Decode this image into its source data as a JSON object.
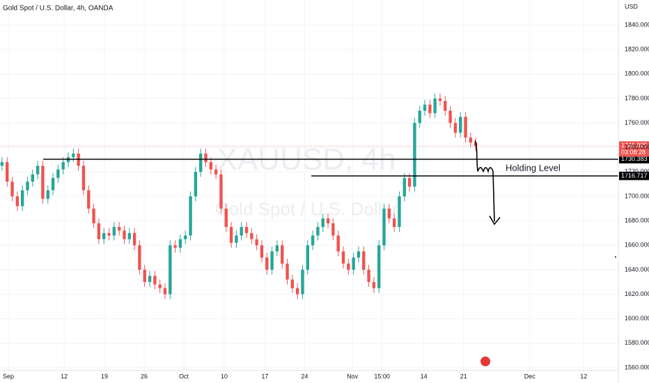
{
  "chart_data": {
    "type": "candlestick",
    "title": "Gold Spot / U.S. Dollar, 4h, OANDA",
    "watermark": "XAUUSD, 4h",
    "watermark_subtitle": "Gold Spot / U.S. Dollar",
    "currency": "USD",
    "annotation": "Holding Level",
    "up_color": "#26a69a",
    "down_color": "#ef5350",
    "x": [
      0,
      1,
      2,
      3,
      4,
      5,
      6,
      7,
      8,
      9,
      10,
      11,
      12,
      13,
      14,
      15,
      16,
      17,
      18,
      19,
      20,
      21,
      22,
      23,
      24,
      25,
      26,
      27,
      28,
      29,
      30,
      31,
      32,
      33,
      34,
      35,
      36,
      37,
      38,
      39,
      40,
      41,
      42,
      43,
      44,
      45,
      46,
      47,
      48,
      49,
      50,
      51,
      52,
      53,
      54,
      55,
      56,
      57,
      58,
      59,
      60,
      61,
      62,
      63,
      64,
      65,
      66,
      67,
      68,
      69,
      70,
      71,
      72,
      73,
      74,
      75,
      76,
      77,
      78,
      79,
      80,
      81,
      82,
      83,
      84,
      85,
      86,
      87,
      88,
      89,
      90,
      91,
      92,
      93
    ],
    "open": [
      1725,
      1728,
      1712,
      1700,
      1692,
      1705,
      1712,
      1718,
      1725,
      1698,
      1705,
      1715,
      1722,
      1728,
      1732,
      1735,
      1725,
      1705,
      1690,
      1678,
      1665,
      1670,
      1668,
      1675,
      1672,
      1665,
      1670,
      1660,
      1640,
      1630,
      1635,
      1628,
      1625,
      1620,
      1660,
      1658,
      1665,
      1668,
      1700,
      1720,
      1735,
      1728,
      1722,
      1718,
      1690,
      1675,
      1662,
      1668,
      1675,
      1670,
      1665,
      1660,
      1650,
      1640,
      1655,
      1660,
      1645,
      1632,
      1625,
      1620,
      1640,
      1660,
      1668,
      1675,
      1682,
      1678,
      1668,
      1655,
      1645,
      1640,
      1650,
      1655,
      1640,
      1630,
      1625,
      1660,
      1690,
      1682,
      1675,
      1700,
      1715,
      1708,
      1760,
      1770,
      1775,
      1768,
      1780,
      1778,
      1770,
      1760,
      1752,
      1765,
      1748,
      1744
    ],
    "high": [
      1732,
      1732,
      1716,
      1704,
      1709,
      1716,
      1722,
      1729,
      1729,
      1709,
      1719,
      1726,
      1732,
      1736,
      1739,
      1739,
      1729,
      1709,
      1694,
      1682,
      1674,
      1674,
      1679,
      1679,
      1676,
      1674,
      1674,
      1664,
      1644,
      1639,
      1639,
      1632,
      1629,
      1664,
      1664,
      1669,
      1672,
      1704,
      1724,
      1739,
      1739,
      1732,
      1726,
      1722,
      1694,
      1679,
      1672,
      1679,
      1679,
      1674,
      1669,
      1664,
      1654,
      1659,
      1664,
      1664,
      1649,
      1636,
      1629,
      1644,
      1664,
      1672,
      1679,
      1686,
      1686,
      1682,
      1672,
      1659,
      1649,
      1654,
      1659,
      1659,
      1644,
      1634,
      1664,
      1694,
      1694,
      1686,
      1704,
      1719,
      1719,
      1764,
      1774,
      1779,
      1779,
      1784,
      1784,
      1782,
      1774,
      1764,
      1769,
      1769,
      1752,
      1748
    ],
    "low": [
      1721,
      1708,
      1696,
      1688,
      1688,
      1701,
      1708,
      1714,
      1694,
      1694,
      1701,
      1711,
      1718,
      1724,
      1728,
      1721,
      1701,
      1686,
      1674,
      1661,
      1661,
      1664,
      1664,
      1668,
      1661,
      1661,
      1656,
      1636,
      1626,
      1626,
      1624,
      1621,
      1616,
      1616,
      1654,
      1654,
      1661,
      1664,
      1696,
      1716,
      1724,
      1718,
      1714,
      1686,
      1671,
      1658,
      1658,
      1664,
      1666,
      1661,
      1656,
      1646,
      1636,
      1636,
      1651,
      1641,
      1628,
      1621,
      1616,
      1616,
      1636,
      1656,
      1664,
      1671,
      1674,
      1664,
      1651,
      1641,
      1636,
      1636,
      1646,
      1636,
      1626,
      1621,
      1621,
      1656,
      1678,
      1671,
      1671,
      1696,
      1704,
      1704,
      1756,
      1766,
      1764,
      1764,
      1774,
      1766,
      1756,
      1748,
      1748,
      1744,
      1740,
      1737
    ],
    "close": [
      1728,
      1712,
      1700,
      1692,
      1705,
      1712,
      1718,
      1725,
      1698,
      1705,
      1715,
      1722,
      1728,
      1732,
      1735,
      1725,
      1705,
      1690,
      1678,
      1665,
      1670,
      1668,
      1675,
      1672,
      1665,
      1670,
      1660,
      1640,
      1630,
      1635,
      1628,
      1625,
      1620,
      1660,
      1658,
      1665,
      1668,
      1700,
      1720,
      1735,
      1728,
      1722,
      1718,
      1690,
      1675,
      1662,
      1668,
      1675,
      1670,
      1665,
      1660,
      1650,
      1640,
      1655,
      1660,
      1645,
      1632,
      1625,
      1620,
      1640,
      1660,
      1668,
      1675,
      1682,
      1678,
      1668,
      1655,
      1645,
      1640,
      1650,
      1655,
      1640,
      1630,
      1625,
      1660,
      1690,
      1682,
      1675,
      1700,
      1715,
      1708,
      1760,
      1770,
      1775,
      1768,
      1780,
      1778,
      1770,
      1760,
      1752,
      1765,
      1748,
      1744,
      1741
    ],
    "xlim": [
      -0.4,
      121
    ],
    "xticks": [
      {
        "value": 1.24,
        "label": "Sep"
      },
      {
        "value": 12.2,
        "label": "12"
      },
      {
        "value": 20.1,
        "label": "19"
      },
      {
        "value": 27.9,
        "label": "26"
      },
      {
        "value": 35.7,
        "label": "Oct"
      },
      {
        "value": 43.6,
        "label": "10"
      },
      {
        "value": 51.6,
        "label": "17"
      },
      {
        "value": 59.4,
        "label": "24"
      },
      {
        "value": 68.8,
        "label": "Nov"
      },
      {
        "value": 74.6,
        "label": "15:00"
      },
      {
        "value": 82.8,
        "label": "14"
      },
      {
        "value": 90.6,
        "label": "21"
      },
      {
        "value": 103.6,
        "label": "Dec"
      },
      {
        "value": 114.2,
        "label": "12"
      }
    ],
    "ylim": [
      1557.7,
      1860.5
    ],
    "yticks": [
      {
        "value": 1560,
        "label": "1560.000"
      },
      {
        "value": 1580,
        "label": "1580.000"
      },
      {
        "value": 1600,
        "label": "1600.000"
      },
      {
        "value": 1620,
        "label": "1620.000"
      },
      {
        "value": 1640,
        "label": "1640.000"
      },
      {
        "value": 1660,
        "label": "1660.000"
      },
      {
        "value": 1680,
        "label": "1680.000"
      },
      {
        "value": 1700,
        "label": "1700.000"
      },
      {
        "value": 1720,
        "label": "1720.000"
      },
      {
        "value": 1740,
        "label": "1740.000"
      },
      {
        "value": 1760,
        "label": "1760.000"
      },
      {
        "value": 1780,
        "label": "1780.000"
      },
      {
        "value": 1800,
        "label": "1800.000"
      },
      {
        "value": 1820,
        "label": "1820.000"
      },
      {
        "value": 1840,
        "label": "1840.000"
      }
    ],
    "grid": true,
    "levels": [
      1730.383,
      1716.717
    ],
    "last_price": 1741.025,
    "countdown": "03:08:28"
  }
}
